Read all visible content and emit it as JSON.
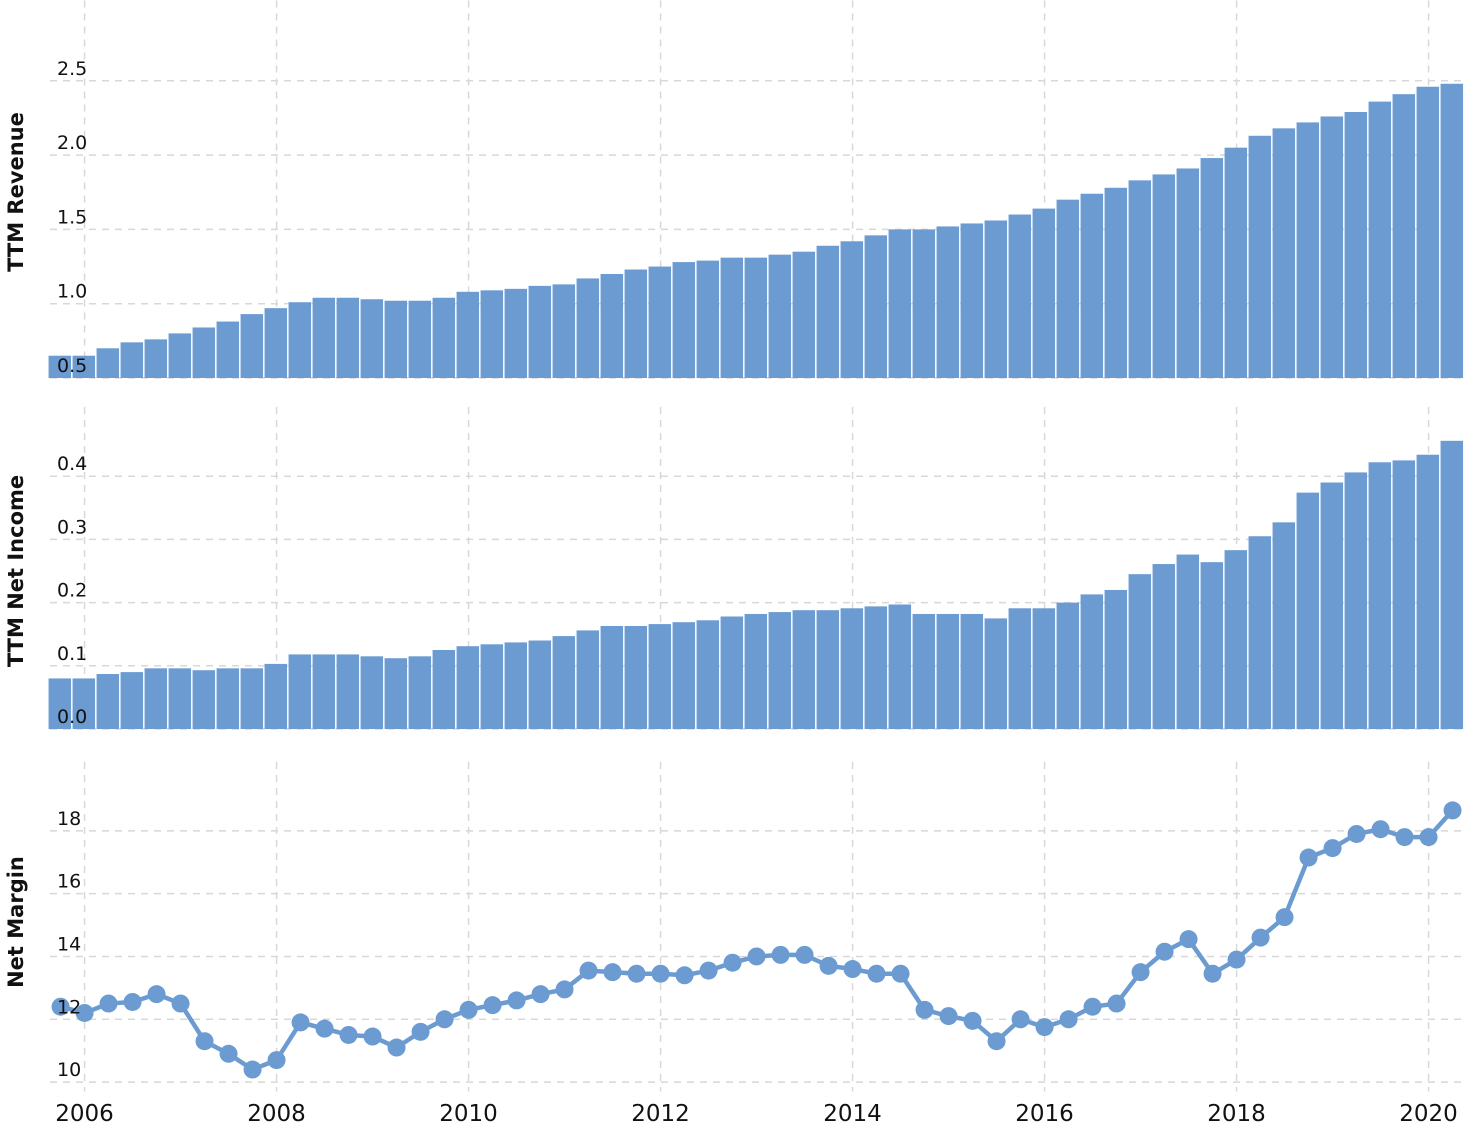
{
  "chart_data": [
    {
      "type": "bar",
      "ylabel": "TTM Revenue",
      "color": "#6b9bd1",
      "grid": true,
      "x": [
        2005.75,
        2006,
        2006.25,
        2006.5,
        2006.75,
        2007,
        2007.25,
        2007.5,
        2007.75,
        2008,
        2008.25,
        2008.5,
        2008.75,
        2009,
        2009.25,
        2009.5,
        2009.75,
        2010,
        2010.25,
        2010.5,
        2010.75,
        2011,
        2011.25,
        2011.5,
        2011.75,
        2012,
        2012.25,
        2012.5,
        2012.75,
        2013,
        2013.25,
        2013.5,
        2013.75,
        2014,
        2014.25,
        2014.5,
        2014.75,
        2015,
        2015.25,
        2015.5,
        2015.75,
        2016,
        2016.25,
        2016.5,
        2016.75,
        2017,
        2017.25,
        2017.5,
        2017.75,
        2018,
        2018.25,
        2018.5,
        2018.75,
        2019,
        2019.25,
        2019.5,
        2019.75,
        2020,
        2020.25
      ],
      "values": [
        0.65,
        0.65,
        0.7,
        0.74,
        0.76,
        0.8,
        0.84,
        0.88,
        0.93,
        0.97,
        1.01,
        1.04,
        1.04,
        1.03,
        1.02,
        1.02,
        1.04,
        1.08,
        1.09,
        1.1,
        1.12,
        1.13,
        1.17,
        1.2,
        1.23,
        1.25,
        1.28,
        1.29,
        1.31,
        1.31,
        1.33,
        1.35,
        1.39,
        1.42,
        1.46,
        1.5,
        1.5,
        1.52,
        1.54,
        1.56,
        1.6,
        1.64,
        1.7,
        1.74,
        1.78,
        1.83,
        1.87,
        1.91,
        1.98,
        2.05,
        2.13,
        2.18,
        2.22,
        2.26,
        2.29,
        2.36,
        2.41,
        2.46,
        2.48
      ],
      "xlim": [
        2005.64,
        2020.39
      ],
      "xticks": [
        2006,
        2008,
        2010,
        2012,
        2014,
        2016,
        2018,
        2020
      ],
      "ylim": [
        0.5,
        3.0
      ],
      "yticks": [
        0.5,
        {
          "value": 1,
          "label": "1.0"
        },
        1.5,
        {
          "value": 2,
          "label": "2.0"
        },
        2.5
      ]
    },
    {
      "type": "bar",
      "ylabel": "TTM Net Income",
      "color": "#6b9bd1",
      "grid": true,
      "x": [
        2005.75,
        2006,
        2006.25,
        2006.5,
        2006.75,
        2007,
        2007.25,
        2007.5,
        2007.75,
        2008,
        2008.25,
        2008.5,
        2008.75,
        2009,
        2009.25,
        2009.5,
        2009.75,
        2010,
        2010.25,
        2010.5,
        2010.75,
        2011,
        2011.25,
        2011.5,
        2011.75,
        2012,
        2012.25,
        2012.5,
        2012.75,
        2013,
        2013.25,
        2013.5,
        2013.75,
        2014,
        2014.25,
        2014.5,
        2014.75,
        2015,
        2015.25,
        2015.5,
        2015.75,
        2016,
        2016.25,
        2016.5,
        2016.75,
        2017,
        2017.25,
        2017.5,
        2017.75,
        2018,
        2018.25,
        2018.5,
        2018.75,
        2019,
        2019.25,
        2019.5,
        2019.75,
        2020,
        2020.25
      ],
      "values": [
        0.08,
        0.08,
        0.087,
        0.09,
        0.096,
        0.096,
        0.093,
        0.096,
        0.096,
        0.103,
        0.118,
        0.118,
        0.118,
        0.115,
        0.112,
        0.115,
        0.125,
        0.131,
        0.134,
        0.137,
        0.14,
        0.147,
        0.156,
        0.163,
        0.163,
        0.166,
        0.169,
        0.172,
        0.178,
        0.182,
        0.185,
        0.188,
        0.188,
        0.191,
        0.194,
        0.197,
        0.182,
        0.182,
        0.182,
        0.175,
        0.191,
        0.191,
        0.2,
        0.213,
        0.22,
        0.245,
        0.261,
        0.276,
        0.264,
        0.283,
        0.305,
        0.327,
        0.374,
        0.39,
        0.406,
        0.422,
        0.425,
        0.434,
        0.456
      ],
      "xlim": [
        2005.64,
        2020.39
      ],
      "xticks": [
        2006,
        2008,
        2010,
        2012,
        2014,
        2016,
        2018,
        2020
      ],
      "ylim": [
        0,
        0.5
      ],
      "yticks": [
        {
          "value": 0,
          "label": "0.0"
        },
        0.1,
        0.2,
        0.3,
        0.4
      ]
    },
    {
      "type": "line",
      "ylabel": "Net Margin",
      "color": "#6b9bd1",
      "grid": true,
      "x": [
        2005.75,
        2006,
        2006.25,
        2006.5,
        2006.75,
        2007,
        2007.25,
        2007.5,
        2007.75,
        2008,
        2008.25,
        2008.5,
        2008.75,
        2009,
        2009.25,
        2009.5,
        2009.75,
        2010,
        2010.25,
        2010.5,
        2010.75,
        2011,
        2011.25,
        2011.5,
        2011.75,
        2012,
        2012.25,
        2012.5,
        2012.75,
        2013,
        2013.25,
        2013.5,
        2013.75,
        2014,
        2014.25,
        2014.5,
        2014.75,
        2015,
        2015.25,
        2015.5,
        2015.75,
        2016,
        2016.25,
        2016.5,
        2016.75,
        2017,
        2017.25,
        2017.5,
        2017.75,
        2018,
        2018.25,
        2018.5,
        2018.75,
        2019,
        2019.25,
        2019.5,
        2019.75,
        2020,
        2020.25
      ],
      "values": [
        12.4,
        12.2,
        12.5,
        12.55,
        12.8,
        12.5,
        11.3,
        10.9,
        10.4,
        10.7,
        11.9,
        11.7,
        11.5,
        11.45,
        11.1,
        11.6,
        12.0,
        12.3,
        12.45,
        12.6,
        12.8,
        12.95,
        13.55,
        13.5,
        13.45,
        13.45,
        13.4,
        13.55,
        13.8,
        14.0,
        14.05,
        14.05,
        13.7,
        13.6,
        13.45,
        13.45,
        12.3,
        12.1,
        11.95,
        11.3,
        12.0,
        11.75,
        12.0,
        12.4,
        12.5,
        13.5,
        14.15,
        14.55,
        13.45,
        13.9,
        14.6,
        15.25,
        17.15,
        17.45,
        17.9,
        18.05,
        17.8,
        17.8,
        18.65
      ],
      "xlim": [
        2005.64,
        2020.39
      ],
      "xticks": [
        2006,
        2008,
        2010,
        2012,
        2014,
        2016,
        2018,
        2020
      ],
      "ylim": [
        9.7,
        20
      ],
      "yticks": [
        10,
        12,
        14,
        16,
        18
      ]
    }
  ]
}
